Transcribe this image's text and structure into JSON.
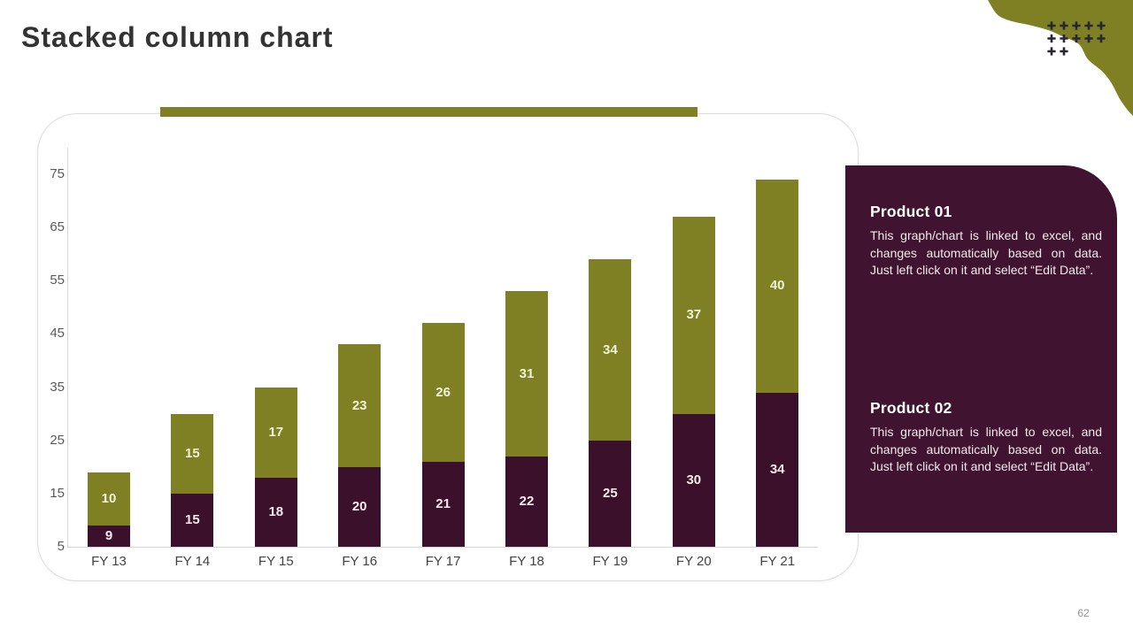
{
  "slide": {
    "title": "Stacked column chart",
    "page_number": "62"
  },
  "theme": {
    "olive": "#7E8023",
    "maroon_bar": "#3B102A",
    "maroon_panel": "#401430",
    "axis_line_color": "#D6D4D4",
    "tick_label_color": "#595959",
    "category_label_color": "#424242",
    "page_number_color": "#919191",
    "plus_color": "#2A2433"
  },
  "chart_data": {
    "type": "bar",
    "variant": "stacked-column",
    "title": "",
    "xlabel": "",
    "ylabel": "",
    "categories": [
      "FY 13",
      "FY 14",
      "FY 15",
      "FY 16",
      "FY 17",
      "FY 18",
      "FY 19",
      "FY 20",
      "FY 21"
    ],
    "series": [
      {
        "name": "Product 01",
        "stack_position": "bottom",
        "color": "#3B102A",
        "label_color": "#F7E9F0",
        "values": [
          9,
          15,
          18,
          20,
          21,
          22,
          25,
          30,
          34
        ]
      },
      {
        "name": "Product 02",
        "stack_position": "top",
        "color": "#7E8023",
        "label_color": "#F4F2D9",
        "values": [
          10,
          15,
          17,
          23,
          26,
          31,
          34,
          37,
          40
        ]
      }
    ],
    "stacked_totals": [
      19,
      30,
      35,
      43,
      47,
      53,
      59,
      67,
      74
    ],
    "y_axis": {
      "min": 5,
      "max": 80,
      "ticks": [
        5,
        15,
        25,
        35,
        45,
        55,
        65,
        75
      ]
    },
    "grid": false,
    "legend": "none",
    "data_labels": true
  },
  "panel": {
    "sections": [
      {
        "heading": "Product 01",
        "body": "This graph/chart is linked to excel, and changes automatically based on data. Just left click on it and select “Edit Data”."
      },
      {
        "heading": "Product 02",
        "body": "This graph/chart is linked to excel, and changes automatically based on data. Just left click on it and select “Edit Data”."
      }
    ]
  }
}
